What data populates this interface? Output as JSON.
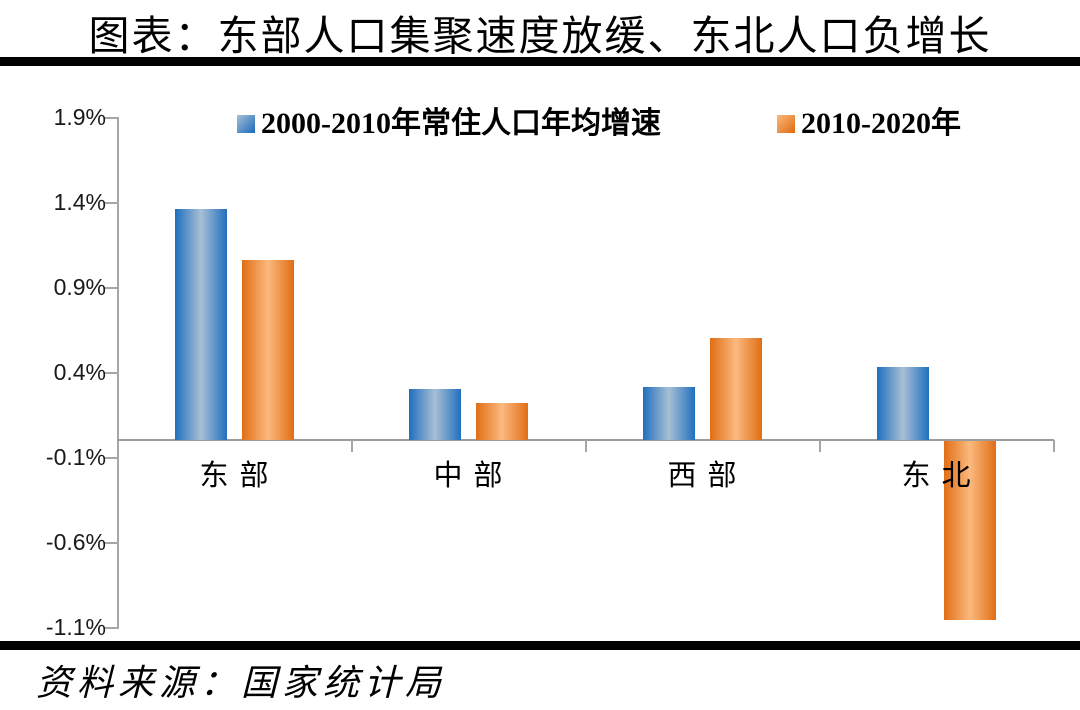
{
  "title": "图表：东部人口集聚速度放缓、东北人口负增长",
  "source_note": "资料来源：国家统计局",
  "colors": {
    "blue_dark": "#1F6FBE",
    "blue_light": "#A9BFD5",
    "orange_dark": "#E06E15",
    "orange_light": "#FBB97E",
    "axis": "#A6A6A6",
    "divider": "#000000"
  },
  "chart_data": {
    "type": "bar",
    "title": "东部人口集聚速度放缓、东北人口负增长",
    "categories": [
      "东部",
      "中部",
      "西部",
      "东北"
    ],
    "series": [
      {
        "name": "2000-2010年常住人口年均增速",
        "color_dark": "#1F6FBE",
        "color_light": "#A9BFD5",
        "values": [
          1.36,
          0.3,
          0.31,
          0.43
        ]
      },
      {
        "name": "2010-2020年",
        "color_dark": "#E06E15",
        "color_light": "#FBB97E",
        "values": [
          1.06,
          0.22,
          0.6,
          -1.05
        ]
      }
    ],
    "unit": "%",
    "xlabel": "",
    "ylabel": "",
    "y_ticks": [
      "1.9%",
      "1.4%",
      "0.9%",
      "0.4%",
      "-0.1%",
      "-0.6%",
      "-1.1%"
    ],
    "ylim": [
      -1.1,
      1.9
    ],
    "grid": false,
    "legend_position": "top-center"
  }
}
